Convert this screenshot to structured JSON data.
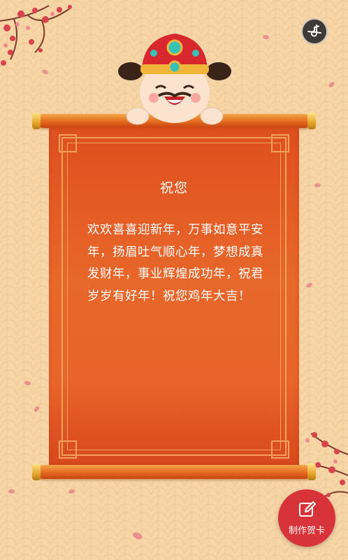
{
  "card": {
    "title": "祝您",
    "message": "欢欢喜喜迎新年，万事如意平安年，扬眉吐气顺心年，梦想成真发财年，事业辉煌成功年，祝君岁岁有好年！祝您鸡年大吉！"
  },
  "controls": {
    "music_icon": "music-off-icon",
    "make_card_icon": "edit-icon",
    "make_card_label": "制作贺卡"
  },
  "colors": {
    "background": "#f6d5a7",
    "scroll_paper": "#e8642a",
    "button_red": "#d9333a",
    "blossom": "#d9444c"
  }
}
